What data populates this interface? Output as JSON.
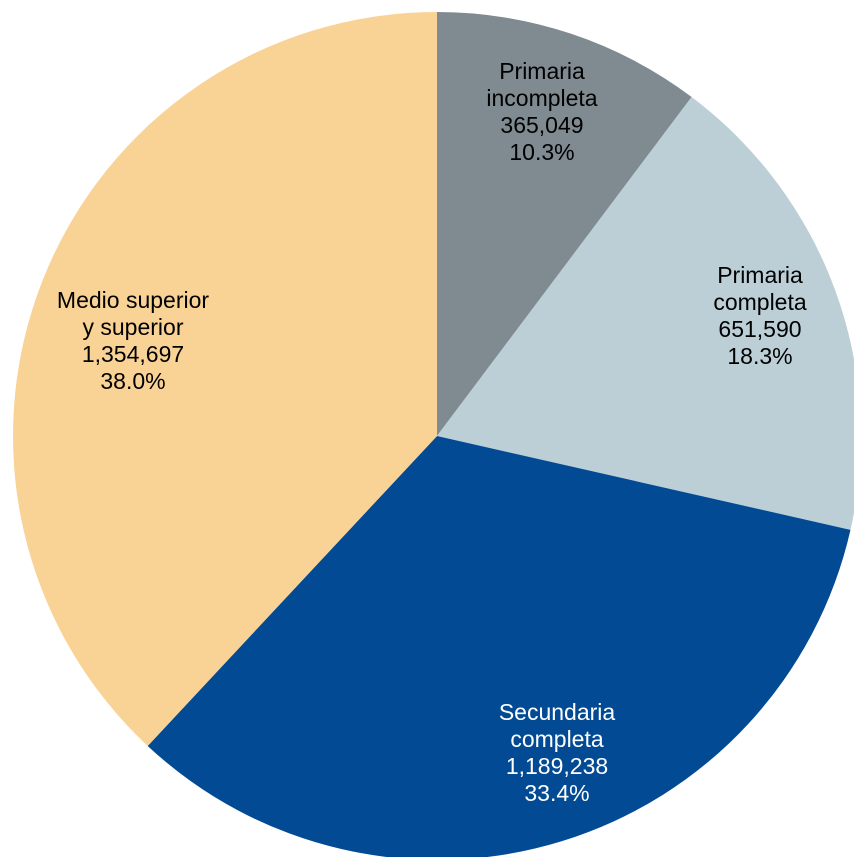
{
  "chart_data": {
    "type": "pie",
    "slices": [
      {
        "label_lines": [
          "Primaria",
          "incompleta"
        ],
        "value": 365049,
        "value_text": "365,049",
        "percent": 10.3,
        "percent_text": "10.3%",
        "color": "#7f8a91",
        "text_color": "#000000"
      },
      {
        "label_lines": [
          "Primaria",
          "completa"
        ],
        "value": 651590,
        "value_text": "651,590",
        "percent": 18.3,
        "percent_text": "18.3%",
        "color": "#bccfd7",
        "text_color": "#000000"
      },
      {
        "label_lines": [
          "Secundaria",
          "completa"
        ],
        "value": 1189238,
        "value_text": "1,189,238",
        "percent": 33.4,
        "percent_text": "33.4%",
        "color": "#024a94",
        "text_color": "#ffffff"
      },
      {
        "label_lines": [
          "Medio superior",
          "y superior"
        ],
        "value": 1354697,
        "value_text": "1,354,697",
        "percent": 38.0,
        "percent_text": "38.0%",
        "color": "#f9d296",
        "text_color": "#000000"
      }
    ]
  }
}
